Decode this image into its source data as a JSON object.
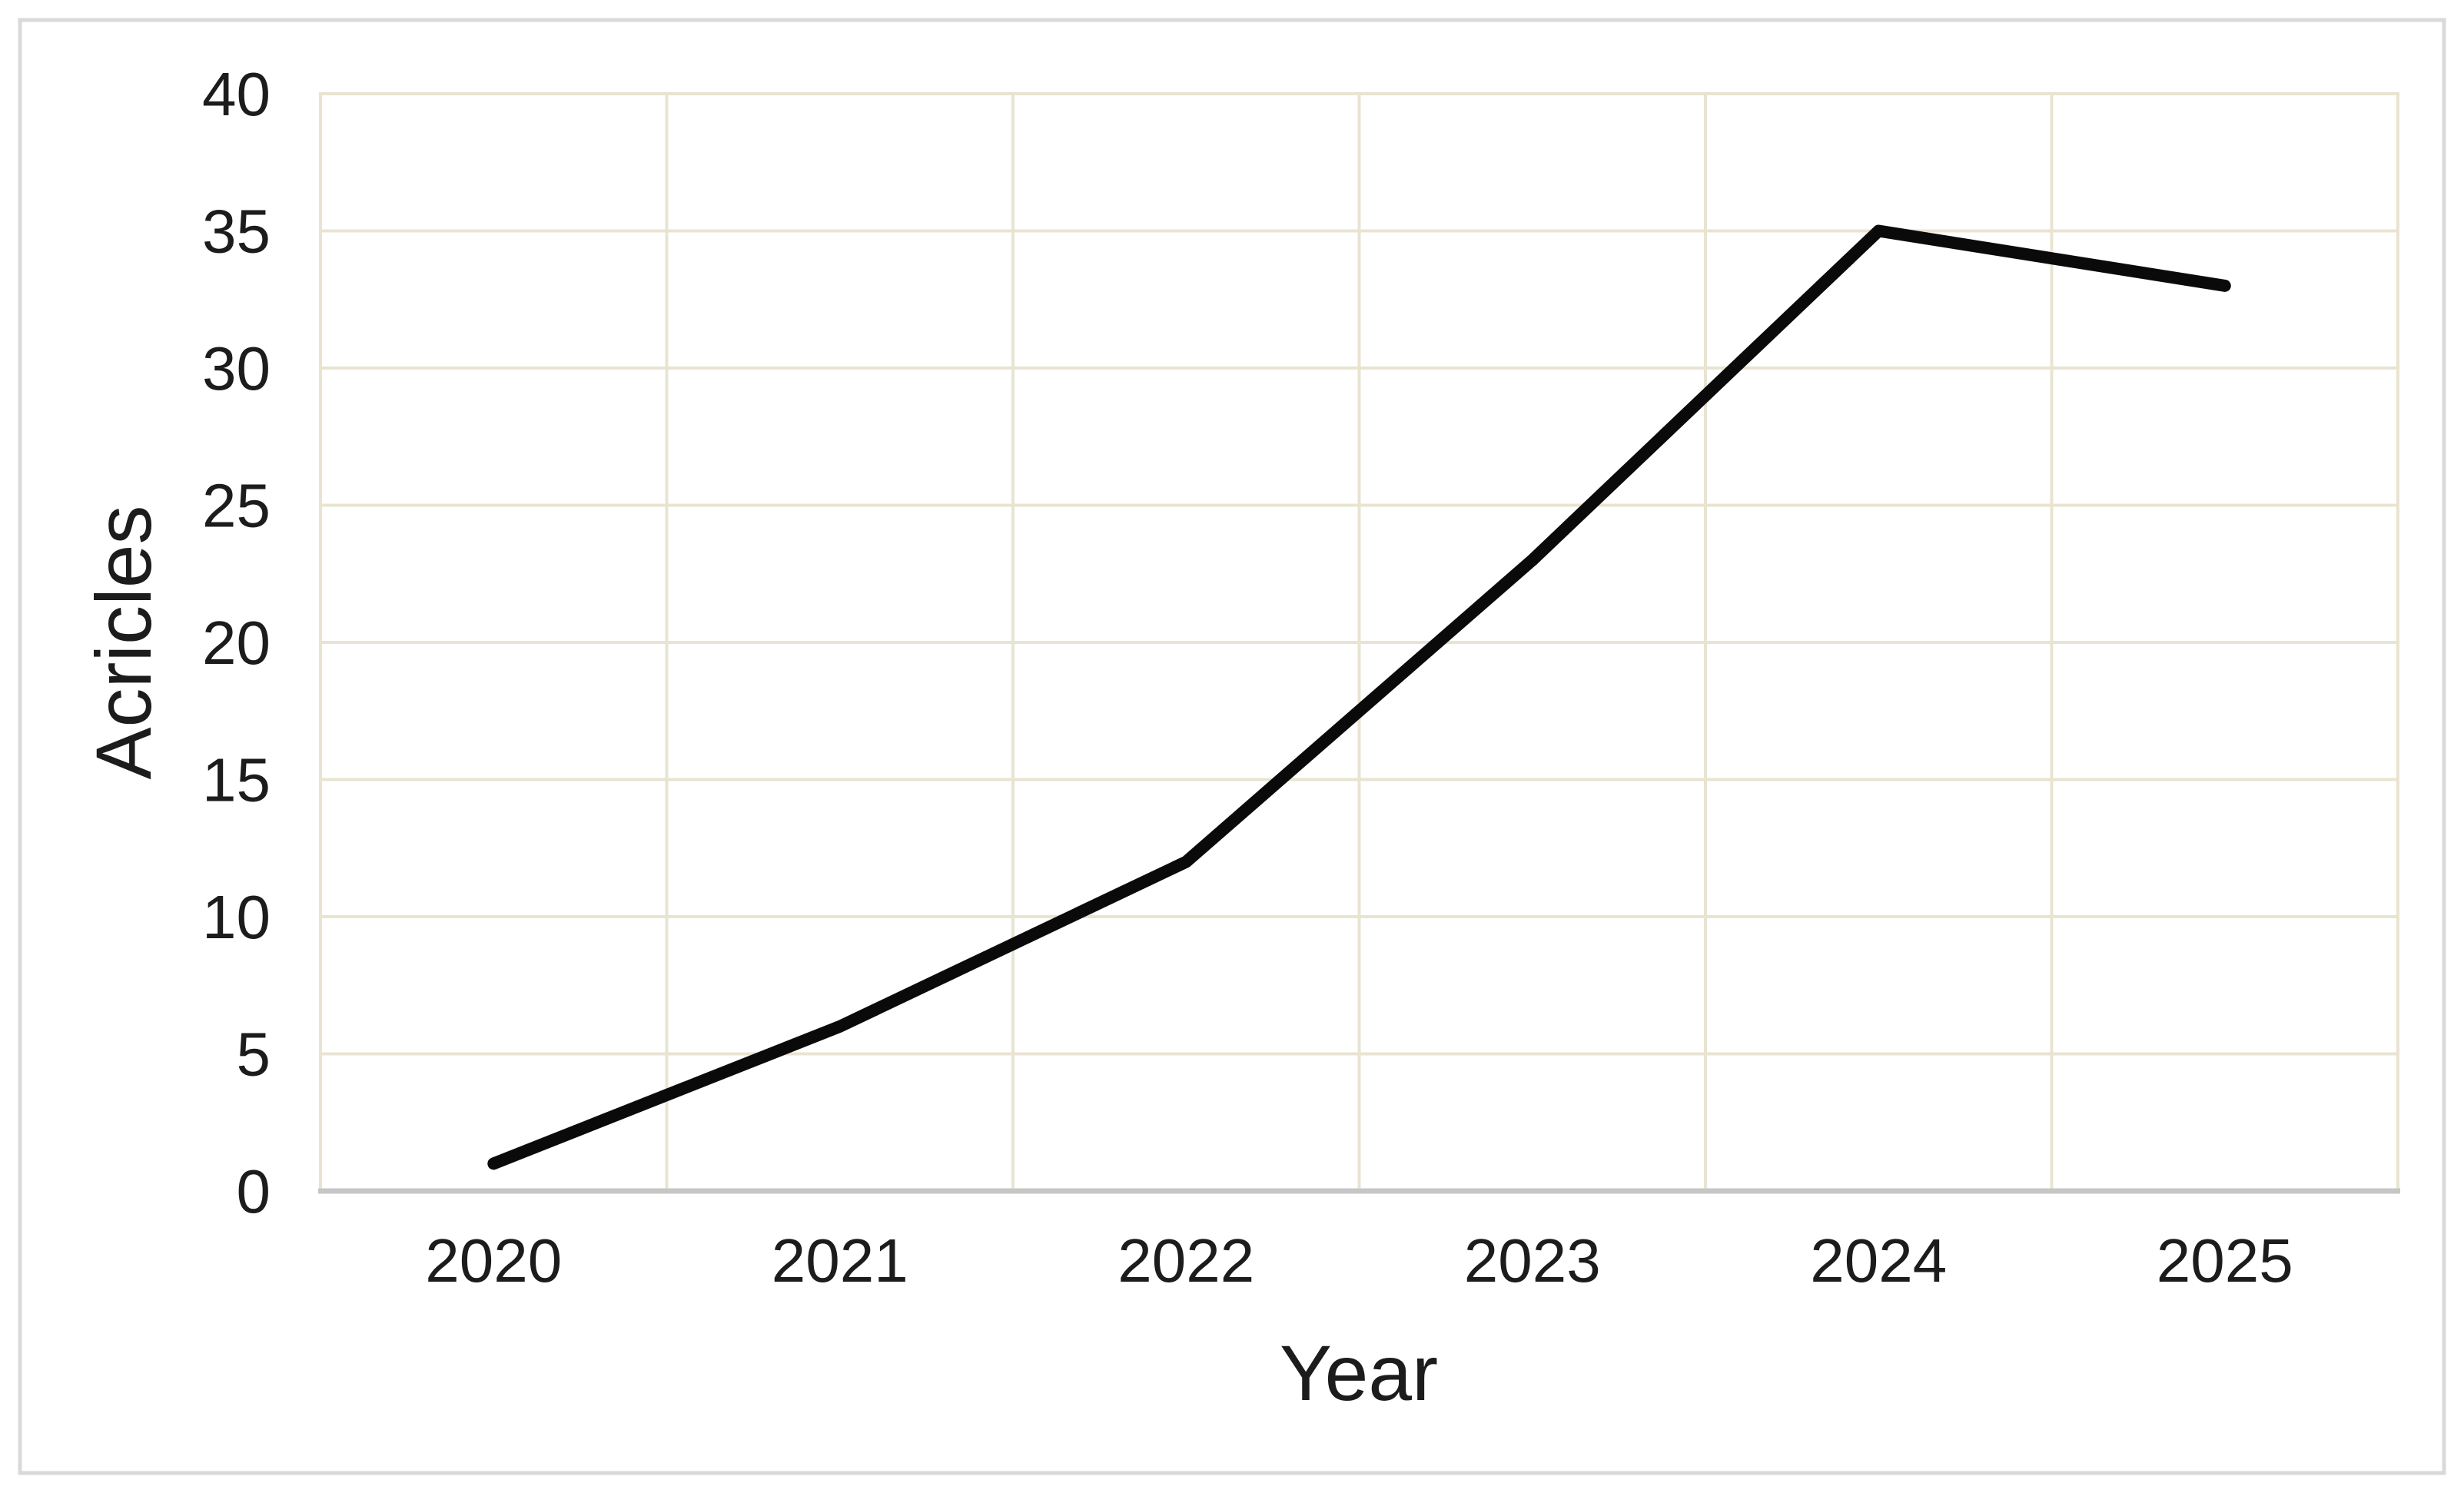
{
  "figure": {
    "background_color": "#ffffff",
    "frame_border_color": "#d9d9d9"
  },
  "chart_data": {
    "type": "line",
    "title": "",
    "xlabel": "Year",
    "ylabel": "Acricles",
    "categories": [
      "2020",
      "2021",
      "2022",
      "2023",
      "2024",
      "2025"
    ],
    "series": [
      {
        "name": "Acricles",
        "values": [
          1,
          6,
          12,
          23,
          35,
          33
        ],
        "color": "#0a0a0a"
      }
    ],
    "ylim": [
      0,
      40
    ],
    "y_tick_interval": 5,
    "y_ticks": [
      "0",
      "5",
      "10",
      "15",
      "20",
      "25",
      "30",
      "35",
      "40"
    ],
    "x_axis_mode": "category-between-gridlines",
    "grid": "on",
    "gridline_color": "#e8e4d1",
    "plot_border_color": "#e8e4d1",
    "x_axis_line_color": "#c6c6c6",
    "tick_label_color": "#1c1c1c",
    "legend": "none"
  }
}
